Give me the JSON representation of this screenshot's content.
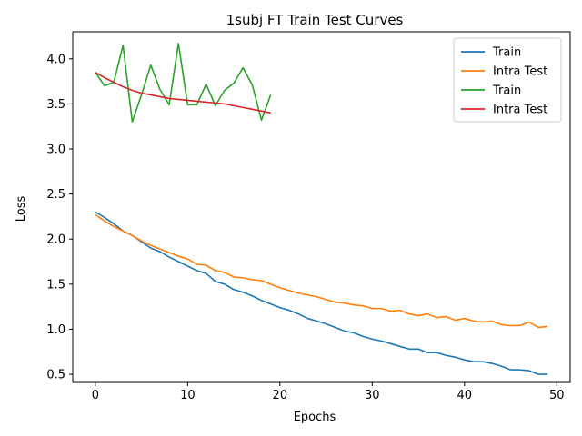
{
  "chart_data": {
    "type": "line",
    "title": "1subj FT Train Test Curves",
    "xlabel": "Epochs",
    "ylabel": "Loss",
    "xlim": [
      -2.45,
      51.45
    ],
    "ylim": [
      0.41,
      4.3
    ],
    "xticks": [
      0,
      10,
      20,
      30,
      40,
      50
    ],
    "yticks": [
      0.5,
      1.0,
      1.5,
      2.0,
      2.5,
      3.0,
      3.5,
      4.0
    ],
    "grid": false,
    "legend_position": "top-right",
    "series": [
      {
        "name": "Train",
        "color": "#1f77b4",
        "x": [
          0,
          1,
          2,
          3,
          4,
          5,
          6,
          7,
          8,
          9,
          10,
          11,
          12,
          13,
          14,
          15,
          16,
          17,
          18,
          19,
          20,
          21,
          22,
          23,
          24,
          25,
          26,
          27,
          28,
          29,
          30,
          31,
          32,
          33,
          34,
          35,
          36,
          37,
          38,
          39,
          40,
          41,
          42,
          43,
          44,
          45,
          46,
          47,
          48,
          49
        ],
        "y": [
          2.3,
          2.24,
          2.17,
          2.09,
          2.04,
          1.97,
          1.9,
          1.86,
          1.8,
          1.75,
          1.7,
          1.65,
          1.62,
          1.53,
          1.5,
          1.44,
          1.41,
          1.37,
          1.32,
          1.28,
          1.24,
          1.21,
          1.17,
          1.12,
          1.09,
          1.06,
          1.02,
          0.98,
          0.96,
          0.92,
          0.89,
          0.87,
          0.84,
          0.81,
          0.78,
          0.78,
          0.74,
          0.74,
          0.71,
          0.69,
          0.66,
          0.64,
          0.64,
          0.62,
          0.59,
          0.55,
          0.55,
          0.54,
          0.5,
          0.5
        ]
      },
      {
        "name": "Intra Test",
        "color": "#ff7f0e",
        "x": [
          0,
          1,
          2,
          3,
          4,
          5,
          6,
          7,
          8,
          9,
          10,
          11,
          12,
          13,
          14,
          15,
          16,
          17,
          18,
          19,
          20,
          21,
          22,
          23,
          24,
          25,
          26,
          27,
          28,
          29,
          30,
          31,
          32,
          33,
          34,
          35,
          36,
          37,
          38,
          39,
          40,
          41,
          42,
          43,
          44,
          45,
          46,
          47,
          48,
          49
        ],
        "y": [
          2.27,
          2.2,
          2.14,
          2.09,
          2.04,
          1.98,
          1.93,
          1.89,
          1.85,
          1.81,
          1.78,
          1.72,
          1.71,
          1.65,
          1.63,
          1.58,
          1.57,
          1.55,
          1.54,
          1.5,
          1.46,
          1.43,
          1.4,
          1.38,
          1.36,
          1.33,
          1.3,
          1.29,
          1.27,
          1.26,
          1.23,
          1.23,
          1.2,
          1.21,
          1.17,
          1.15,
          1.17,
          1.13,
          1.14,
          1.1,
          1.12,
          1.09,
          1.08,
          1.09,
          1.05,
          1.04,
          1.04,
          1.08,
          1.02,
          1.03
        ]
      },
      {
        "name": "Train",
        "color": "#2ca02c",
        "x": [
          0,
          1,
          2,
          3,
          4,
          5,
          6,
          7,
          8,
          9,
          10,
          11,
          12,
          13,
          14,
          15,
          16,
          17,
          18,
          19
        ],
        "y": [
          3.85,
          3.7,
          3.74,
          4.15,
          3.3,
          3.6,
          3.93,
          3.66,
          3.49,
          4.17,
          3.49,
          3.49,
          3.72,
          3.48,
          3.65,
          3.73,
          3.9,
          3.71,
          3.32,
          3.6
        ]
      },
      {
        "name": "Intra Test",
        "color": "#d62728",
        "x": [
          0,
          1,
          2,
          3,
          4,
          5,
          6,
          7,
          8,
          9,
          10,
          11,
          12,
          13,
          14,
          15,
          16,
          17,
          18,
          19
        ],
        "y": [
          3.85,
          3.79,
          3.74,
          3.69,
          3.65,
          3.62,
          3.6,
          3.58,
          3.56,
          3.55,
          3.54,
          3.53,
          3.52,
          3.51,
          3.5,
          3.48,
          3.46,
          3.44,
          3.42,
          3.4
        ]
      }
    ]
  }
}
